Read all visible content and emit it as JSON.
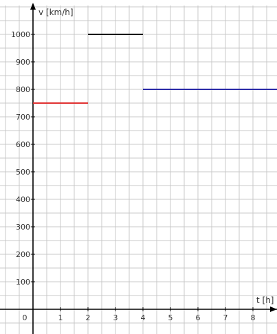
{
  "chart_data": {
    "type": "line",
    "xlabel": "t [h]",
    "ylabel": "v [km/h]",
    "xlim": [
      0,
      9
    ],
    "ylim": [
      0,
      1000
    ],
    "x_ticks": [
      0,
      1,
      2,
      3,
      4,
      5,
      6,
      7,
      8
    ],
    "y_ticks": [
      100,
      200,
      300,
      400,
      500,
      600,
      700,
      800,
      900,
      1000
    ],
    "grid": true,
    "series": [
      {
        "x": [
          0,
          2
        ],
        "y": [
          750,
          750
        ],
        "color": "#e03030"
      },
      {
        "x": [
          2,
          4
        ],
        "y": [
          1000,
          1000
        ],
        "color": "#000000"
      },
      {
        "x": [
          4,
          9
        ],
        "y": [
          800,
          800
        ],
        "color": "#2a2aa8"
      }
    ]
  }
}
